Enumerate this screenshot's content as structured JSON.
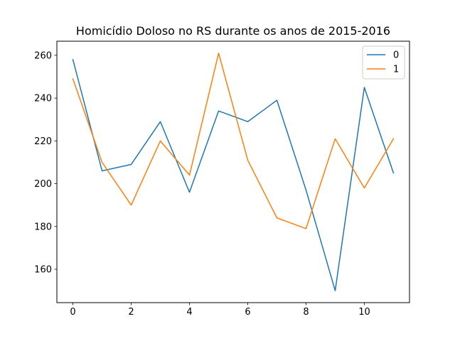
{
  "chart_data": {
    "type": "line",
    "title": "Homicídio Doloso no RS durante os anos de 2015-2016",
    "xlabel": "",
    "ylabel": "",
    "x": [
      0,
      1,
      2,
      3,
      4,
      5,
      6,
      7,
      8,
      9,
      10,
      11
    ],
    "xlim": [
      -0.55,
      11.55
    ],
    "ylim": [
      144.4,
      266.6
    ],
    "xticks": [
      0,
      2,
      4,
      6,
      8,
      10
    ],
    "yticks": [
      160,
      180,
      200,
      220,
      240,
      260
    ],
    "grid": false,
    "legend_position": "top-right",
    "series": [
      {
        "name": "0",
        "color": "#1f77b4",
        "values": [
          258,
          206,
          209,
          229,
          196,
          234,
          229,
          239,
          197,
          150,
          245,
          205
        ]
      },
      {
        "name": "1",
        "color": "#ff7f0e",
        "values": [
          249,
          210,
          190,
          220,
          204,
          261,
          211,
          184,
          179,
          221,
          198,
          221
        ]
      }
    ]
  }
}
